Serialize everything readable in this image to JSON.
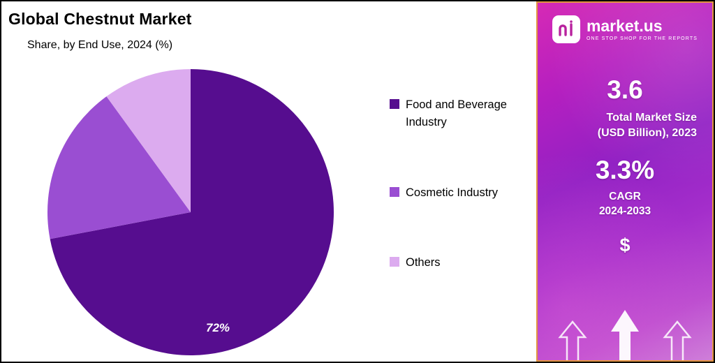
{
  "header": {
    "title": "Global Chestnut Market",
    "subtitle": "Share, by End Use, 2024 (%)"
  },
  "chart_data": {
    "type": "pie",
    "title": "Global Chestnut Market",
    "subtitle": "Share, by End Use, 2024 (%)",
    "categories": [
      "Food and Beverage Industry",
      "Cosmetic Industry",
      "Others"
    ],
    "values": [
      72,
      18,
      10
    ],
    "unit": "%",
    "colors": [
      "#560d8f",
      "#9a4ed2",
      "#dcabef"
    ],
    "start_angle_deg": 0,
    "direction": "clockwise",
    "legend_position": "right",
    "data_labels": [
      {
        "category": "Food and Beverage Industry",
        "text": "72%"
      }
    ]
  },
  "legend": {
    "items": [
      {
        "label": "Food and Beverage Industry",
        "color": "#560d8f"
      },
      {
        "label": "Cosmetic Industry",
        "color": "#9a4ed2"
      },
      {
        "label": "Others",
        "color": "#dcabef"
      }
    ]
  },
  "sidebar": {
    "brand": {
      "name": "market.us",
      "tagline": "ONE STOP SHOP FOR THE REPORTS"
    },
    "stats": [
      {
        "value": "3.6",
        "label": "Total Market Size\n(USD Billion), 2023"
      },
      {
        "value": "3.3%",
        "label": "CAGR\n2024-2033"
      }
    ],
    "dollar_symbol": "$",
    "colors": {
      "panel_border": "#e2953f",
      "gradient_top": "#d62ab5",
      "gradient_bottom": "#cf7fd9"
    }
  }
}
